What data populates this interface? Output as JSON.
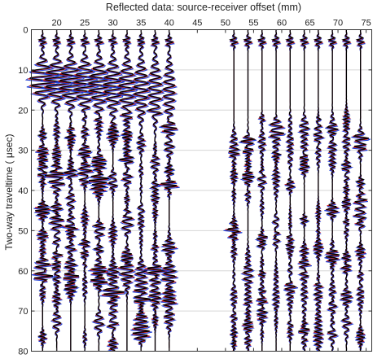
{
  "chart_data": {
    "type": "line",
    "title": "Reflected data: source-receiver offset (mm)",
    "xlabel": "",
    "ylabel": "Two-way traveltime ( μsec)",
    "xlim": [
      15.5,
      76
    ],
    "ylim": [
      0,
      80
    ],
    "y_inverted": true,
    "x_axis_position": "top",
    "xticks": [
      20,
      25,
      30,
      35,
      40,
      45,
      50,
      55,
      60,
      65,
      70,
      75
    ],
    "yticks": [
      0,
      10,
      20,
      30,
      40,
      50,
      60,
      70,
      80
    ],
    "grid": "horizontal",
    "legend": "none",
    "trace_offsets_mm": [
      17.5,
      20,
      22.5,
      25,
      27.5,
      30,
      32.5,
      35,
      37.5,
      40,
      51.5,
      54,
      56.5,
      59,
      61.5,
      64,
      66.5,
      69,
      71.5,
      74
    ],
    "series": [
      {
        "color": "#1f3fd6"
      },
      {
        "color": "#c81414"
      },
      {
        "color": "#000000"
      }
    ]
  }
}
